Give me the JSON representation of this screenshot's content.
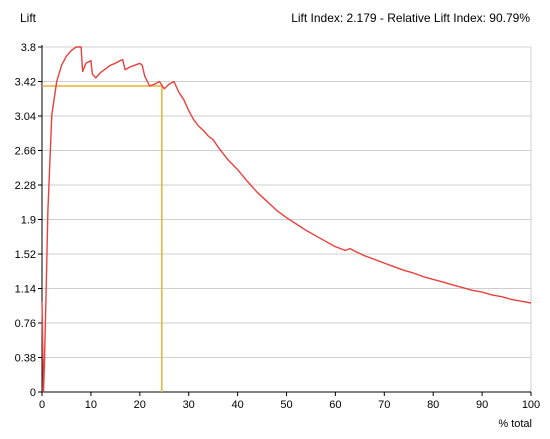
{
  "header": {
    "y_axis_title": "Lift",
    "index_text": "Lift Index: 2.179 - Relative Lift Index: 90.79%"
  },
  "chart_data": {
    "type": "line",
    "ylabel": "Lift",
    "xlabel": "% total",
    "xlim": [
      0,
      100
    ],
    "ylim": [
      0,
      3.8
    ],
    "x_ticks": [
      0,
      10,
      20,
      30,
      40,
      50,
      60,
      70,
      80,
      90,
      100
    ],
    "y_ticks": [
      0,
      0.38,
      0.76,
      1.14,
      1.52,
      1.9,
      2.28,
      2.66,
      3.04,
      3.42,
      3.8
    ],
    "y_tick_labels": [
      "0",
      "0.38",
      "0.76",
      "1.14",
      "1.52",
      "1.9",
      "2.28",
      "2.66",
      "3.04",
      "3.42",
      "3.8"
    ],
    "grid": true,
    "series": [
      {
        "color": "#e8413c",
        "x": [
          0,
          0.3,
          0.5,
          0.8,
          1.2,
          2,
          3,
          4,
          5,
          6,
          7,
          8,
          8.3,
          9,
          10,
          10.3,
          11,
          12,
          13,
          14,
          15,
          16,
          16.5,
          17,
          18,
          19,
          20,
          20.5,
          21,
          22,
          23,
          24,
          25,
          26,
          27,
          28,
          29,
          30,
          31,
          32,
          33,
          34,
          35,
          36,
          38,
          40,
          42,
          44,
          46,
          48,
          50,
          52,
          54,
          56,
          58,
          60,
          62,
          63,
          64,
          66,
          68,
          70,
          72,
          74,
          76,
          78,
          80,
          82,
          84,
          86,
          88,
          90,
          92,
          94,
          96,
          98,
          100
        ],
        "y": [
          1.0,
          0.0,
          0.3,
          1.0,
          2.0,
          3.05,
          3.42,
          3.6,
          3.7,
          3.76,
          3.8,
          3.8,
          3.53,
          3.62,
          3.65,
          3.5,
          3.46,
          3.52,
          3.56,
          3.6,
          3.62,
          3.65,
          3.66,
          3.55,
          3.58,
          3.6,
          3.62,
          3.6,
          3.48,
          3.37,
          3.39,
          3.42,
          3.34,
          3.39,
          3.42,
          3.3,
          3.22,
          3.1,
          3.0,
          2.93,
          2.88,
          2.82,
          2.78,
          2.7,
          2.56,
          2.45,
          2.32,
          2.2,
          2.1,
          2.0,
          1.92,
          1.85,
          1.78,
          1.72,
          1.66,
          1.6,
          1.56,
          1.58,
          1.55,
          1.5,
          1.46,
          1.42,
          1.38,
          1.34,
          1.31,
          1.27,
          1.24,
          1.21,
          1.18,
          1.15,
          1.12,
          1.1,
          1.07,
          1.05,
          1.02,
          1.0,
          0.98
        ]
      }
    ],
    "reference": {
      "color": "#e5b235",
      "x": 24.5,
      "y": 3.37
    }
  }
}
